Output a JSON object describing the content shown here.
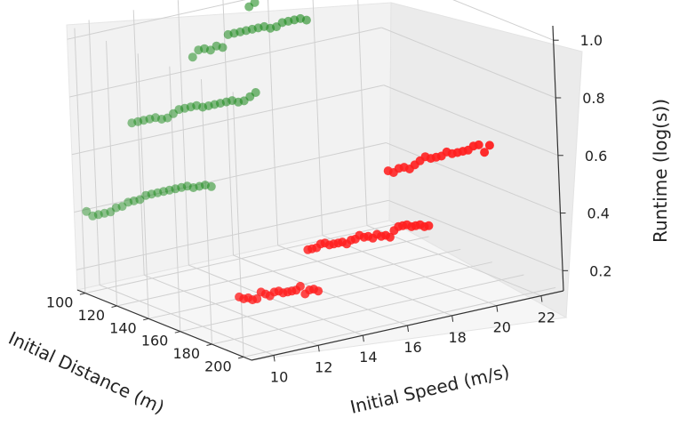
{
  "chart_data": {
    "type": "scatter",
    "projection": "3d",
    "title": "",
    "xlabel": "Initial Distance (m)",
    "ylabel": "Initial Speed (m/s)",
    "zlabel": "Runtime (log(s))",
    "xlim": [
      95,
      205
    ],
    "ylim": [
      9,
      23
    ],
    "zlim": [
      0.13,
      1.05
    ],
    "x_ticks": [
      "100",
      "120",
      "140",
      "160",
      "180",
      "200"
    ],
    "y_ticks": [
      "10",
      "12",
      "14",
      "16",
      "18",
      "20",
      "22"
    ],
    "z_ticks": [
      "0.2",
      "0.4",
      "0.6",
      "0.8",
      "1.0"
    ],
    "grid": true,
    "legend": "none",
    "colors": {
      "green": "#1e8a1e",
      "red": "#ff1f1f"
    },
    "series": [
      {
        "color": "green",
        "points": [
          {
            "x": 100,
            "y": 9.2,
            "z": 0.41
          },
          {
            "x": 100,
            "y": 9.47,
            "z": 0.39
          },
          {
            "x": 100,
            "y": 9.73,
            "z": 0.39
          },
          {
            "x": 100,
            "y": 10.0,
            "z": 0.39
          },
          {
            "x": 100,
            "y": 10.27,
            "z": 0.39
          },
          {
            "x": 100,
            "y": 10.53,
            "z": 0.4
          },
          {
            "x": 100,
            "y": 10.8,
            "z": 0.4
          },
          {
            "x": 100,
            "y": 11.07,
            "z": 0.41
          },
          {
            "x": 100,
            "y": 11.33,
            "z": 0.41
          },
          {
            "x": 100,
            "y": 11.6,
            "z": 0.41
          },
          {
            "x": 100,
            "y": 11.87,
            "z": 0.42
          },
          {
            "x": 100,
            "y": 12.13,
            "z": 0.42
          },
          {
            "x": 100,
            "y": 12.4,
            "z": 0.42
          },
          {
            "x": 100,
            "y": 12.67,
            "z": 0.42
          },
          {
            "x": 100,
            "y": 12.93,
            "z": 0.42
          },
          {
            "x": 100,
            "y": 13.2,
            "z": 0.42
          },
          {
            "x": 100,
            "y": 13.47,
            "z": 0.42
          },
          {
            "x": 100,
            "y": 13.73,
            "z": 0.42
          },
          {
            "x": 100,
            "y": 14.0,
            "z": 0.41
          },
          {
            "x": 100,
            "y": 14.27,
            "z": 0.41
          },
          {
            "x": 100,
            "y": 14.53,
            "z": 0.41
          },
          {
            "x": 100,
            "y": 14.8,
            "z": 0.4
          },
          {
            "x": 100,
            "y": 11.38,
            "z": 0.68
          },
          {
            "x": 100,
            "y": 11.65,
            "z": 0.68
          },
          {
            "x": 100,
            "y": 11.91,
            "z": 0.68
          },
          {
            "x": 100,
            "y": 12.18,
            "z": 0.68
          },
          {
            "x": 100,
            "y": 12.44,
            "z": 0.68
          },
          {
            "x": 100,
            "y": 12.71,
            "z": 0.67
          },
          {
            "x": 100,
            "y": 12.97,
            "z": 0.67
          },
          {
            "x": 100,
            "y": 13.24,
            "z": 0.68
          },
          {
            "x": 100,
            "y": 13.5,
            "z": 0.69
          },
          {
            "x": 100,
            "y": 13.76,
            "z": 0.69
          },
          {
            "x": 100,
            "y": 14.03,
            "z": 0.69
          },
          {
            "x": 100,
            "y": 14.29,
            "z": 0.69
          },
          {
            "x": 100,
            "y": 14.56,
            "z": 0.68
          },
          {
            "x": 100,
            "y": 14.82,
            "z": 0.68
          },
          {
            "x": 100,
            "y": 15.09,
            "z": 0.68
          },
          {
            "x": 100,
            "y": 15.35,
            "z": 0.68
          },
          {
            "x": 100,
            "y": 15.62,
            "z": 0.68
          },
          {
            "x": 100,
            "y": 15.88,
            "z": 0.68
          },
          {
            "x": 100,
            "y": 16.15,
            "z": 0.67
          },
          {
            "x": 100,
            "y": 16.41,
            "z": 0.67
          },
          {
            "x": 100,
            "y": 16.68,
            "z": 0.68
          },
          {
            "x": 100,
            "y": 16.94,
            "z": 0.69
          },
          {
            "x": 100,
            "y": 14.2,
            "z": 0.86
          },
          {
            "x": 100,
            "y": 14.47,
            "z": 0.88
          },
          {
            "x": 100,
            "y": 14.74,
            "z": 0.88
          },
          {
            "x": 100,
            "y": 15.01,
            "z": 0.87
          },
          {
            "x": 100,
            "y": 15.28,
            "z": 0.88
          },
          {
            "x": 100,
            "y": 15.55,
            "z": 0.87
          },
          {
            "x": 100,
            "y": 15.82,
            "z": 0.91
          },
          {
            "x": 100,
            "y": 16.09,
            "z": 0.91
          },
          {
            "x": 100,
            "y": 16.36,
            "z": 0.91
          },
          {
            "x": 100,
            "y": 16.63,
            "z": 0.91
          },
          {
            "x": 100,
            "y": 16.9,
            "z": 0.91
          },
          {
            "x": 100,
            "y": 17.17,
            "z": 0.91
          },
          {
            "x": 100,
            "y": 17.44,
            "z": 0.91
          },
          {
            "x": 100,
            "y": 17.71,
            "z": 0.9
          },
          {
            "x": 100,
            "y": 17.98,
            "z": 0.9
          },
          {
            "x": 100,
            "y": 18.25,
            "z": 0.91
          },
          {
            "x": 100,
            "y": 18.52,
            "z": 0.91
          },
          {
            "x": 100,
            "y": 18.79,
            "z": 0.91
          },
          {
            "x": 100,
            "y": 19.06,
            "z": 0.91
          },
          {
            "x": 100,
            "y": 19.33,
            "z": 0.9
          },
          {
            "x": 100,
            "y": 16.8,
            "z": 0.99
          },
          {
            "x": 100,
            "y": 17.06,
            "z": 1.0
          },
          {
            "x": 100,
            "y": 17.33,
            "z": 1.02
          },
          {
            "x": 100,
            "y": 17.59,
            "z": 1.03
          },
          {
            "x": 100,
            "y": 17.86,
            "z": 1.03
          },
          {
            "x": 100,
            "y": 18.12,
            "z": 1.05
          },
          {
            "x": 100,
            "y": 18.38,
            "z": 1.06
          },
          {
            "x": 100,
            "y": 18.65,
            "z": 1.06
          },
          {
            "x": 100,
            "y": 18.91,
            "z": 1.06
          },
          {
            "x": 100,
            "y": 19.18,
            "z": 1.06
          },
          {
            "x": 100,
            "y": 19.44,
            "z": 1.06
          },
          {
            "x": 100,
            "y": 19.71,
            "z": 1.06
          },
          {
            "x": 100,
            "y": 19.97,
            "z": 1.04
          },
          {
            "x": 100,
            "y": 20.24,
            "z": 1.04
          },
          {
            "x": 100,
            "y": 20.5,
            "z": 1.04
          },
          {
            "x": 100,
            "y": 20.76,
            "z": 1.03
          },
          {
            "x": 100,
            "y": 21.03,
            "z": 1.03
          },
          {
            "x": 100,
            "y": 21.29,
            "z": 1.03
          },
          {
            "x": 100,
            "y": 21.56,
            "z": 1.03
          },
          {
            "x": 100,
            "y": 21.82,
            "z": 1.03
          }
        ]
      },
      {
        "color": "red",
        "points": [
          {
            "x": 200,
            "y": 8.91,
            "z": 0.34
          },
          {
            "x": 200,
            "y": 9.11,
            "z": 0.33
          },
          {
            "x": 200,
            "y": 9.31,
            "z": 0.33
          },
          {
            "x": 200,
            "y": 9.5,
            "z": 0.32
          },
          {
            "x": 200,
            "y": 9.7,
            "z": 0.32
          },
          {
            "x": 200,
            "y": 9.89,
            "z": 0.34
          },
          {
            "x": 200,
            "y": 10.09,
            "z": 0.33
          },
          {
            "x": 200,
            "y": 10.28,
            "z": 0.32
          },
          {
            "x": 200,
            "y": 10.48,
            "z": 0.33
          },
          {
            "x": 200,
            "y": 10.68,
            "z": 0.33
          },
          {
            "x": 200,
            "y": 10.87,
            "z": 0.32
          },
          {
            "x": 200,
            "y": 11.07,
            "z": 0.32
          },
          {
            "x": 200,
            "y": 11.26,
            "z": 0.32
          },
          {
            "x": 200,
            "y": 11.46,
            "z": 0.32
          },
          {
            "x": 200,
            "y": 11.65,
            "z": 0.33
          },
          {
            "x": 200,
            "y": 11.85,
            "z": 0.3
          },
          {
            "x": 200,
            "y": 12.05,
            "z": 0.31
          },
          {
            "x": 200,
            "y": 12.24,
            "z": 0.31
          },
          {
            "x": 200,
            "y": 12.44,
            "z": 0.3
          },
          {
            "x": 200,
            "y": 12.05,
            "z": 0.45
          },
          {
            "x": 200,
            "y": 12.24,
            "z": 0.45
          },
          {
            "x": 200,
            "y": 12.44,
            "z": 0.45
          },
          {
            "x": 200,
            "y": 12.63,
            "z": 0.46
          },
          {
            "x": 200,
            "y": 12.82,
            "z": 0.46
          },
          {
            "x": 200,
            "y": 13.02,
            "z": 0.45
          },
          {
            "x": 200,
            "y": 13.21,
            "z": 0.45
          },
          {
            "x": 200,
            "y": 13.41,
            "z": 0.45
          },
          {
            "x": 200,
            "y": 13.6,
            "z": 0.45
          },
          {
            "x": 200,
            "y": 13.79,
            "z": 0.44
          },
          {
            "x": 200,
            "y": 13.99,
            "z": 0.45
          },
          {
            "x": 200,
            "y": 14.18,
            "z": 0.45
          },
          {
            "x": 200,
            "y": 14.37,
            "z": 0.46
          },
          {
            "x": 200,
            "y": 14.57,
            "z": 0.45
          },
          {
            "x": 200,
            "y": 14.76,
            "z": 0.45
          },
          {
            "x": 200,
            "y": 14.96,
            "z": 0.44
          },
          {
            "x": 200,
            "y": 15.15,
            "z": 0.45
          },
          {
            "x": 200,
            "y": 15.34,
            "z": 0.44
          },
          {
            "x": 200,
            "y": 15.54,
            "z": 0.44
          },
          {
            "x": 200,
            "y": 15.73,
            "z": 0.43
          },
          {
            "x": 200,
            "y": 15.92,
            "z": 0.45
          },
          {
            "x": 200,
            "y": 16.12,
            "z": 0.46
          },
          {
            "x": 200,
            "y": 16.31,
            "z": 0.46
          },
          {
            "x": 200,
            "y": 16.5,
            "z": 0.46
          },
          {
            "x": 200,
            "y": 16.7,
            "z": 0.45
          },
          {
            "x": 200,
            "y": 16.89,
            "z": 0.45
          },
          {
            "x": 200,
            "y": 17.09,
            "z": 0.45
          },
          {
            "x": 200,
            "y": 17.28,
            "z": 0.44
          },
          {
            "x": 200,
            "y": 17.47,
            "z": 0.44
          },
          {
            "x": 200,
            "y": 15.76,
            "z": 0.66
          },
          {
            "x": 200,
            "y": 16.0,
            "z": 0.65
          },
          {
            "x": 200,
            "y": 16.24,
            "z": 0.66
          },
          {
            "x": 200,
            "y": 16.48,
            "z": 0.66
          },
          {
            "x": 200,
            "y": 16.72,
            "z": 0.65
          },
          {
            "x": 200,
            "y": 16.96,
            "z": 0.66
          },
          {
            "x": 200,
            "y": 17.2,
            "z": 0.67
          },
          {
            "x": 200,
            "y": 17.44,
            "z": 0.68
          },
          {
            "x": 200,
            "y": 17.68,
            "z": 0.67
          },
          {
            "x": 200,
            "y": 17.92,
            "z": 0.67
          },
          {
            "x": 200,
            "y": 18.16,
            "z": 0.67
          },
          {
            "x": 200,
            "y": 18.4,
            "z": 0.68
          },
          {
            "x": 200,
            "y": 18.64,
            "z": 0.67
          },
          {
            "x": 200,
            "y": 18.88,
            "z": 0.67
          },
          {
            "x": 200,
            "y": 19.12,
            "z": 0.67
          },
          {
            "x": 200,
            "y": 19.36,
            "z": 0.67
          },
          {
            "x": 200,
            "y": 19.6,
            "z": 0.68
          },
          {
            "x": 200,
            "y": 19.84,
            "z": 0.68
          },
          {
            "x": 200,
            "y": 20.08,
            "z": 0.65
          },
          {
            "x": 200,
            "y": 20.32,
            "z": 0.67
          }
        ]
      }
    ]
  }
}
